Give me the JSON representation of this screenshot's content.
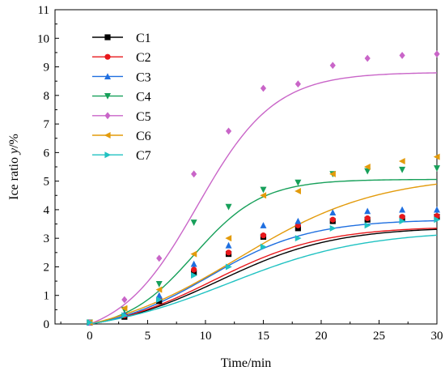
{
  "chart_data": {
    "type": "line",
    "xlabel": "Time/min",
    "ylabel": "Ice ratio y/%",
    "ylabel_parts": {
      "before": "Ice ratio ",
      "italic": "y",
      "after": "/%"
    },
    "xlim": [
      -3,
      30
    ],
    "ylim": [
      0,
      11
    ],
    "xticks": [
      0,
      5,
      10,
      15,
      20,
      25,
      30
    ],
    "yticks": [
      0,
      1,
      2,
      3,
      4,
      5,
      6,
      7,
      8,
      9,
      10,
      11
    ],
    "grid": false,
    "legend_position": "top-left",
    "x": [
      0,
      3,
      6,
      9,
      12,
      15,
      18,
      21,
      24,
      27,
      30
    ],
    "series": [
      {
        "name": "C1",
        "color": "#000000",
        "marker": "square",
        "values": [
          0.05,
          0.25,
          0.8,
          1.8,
          2.45,
          3.05,
          3.35,
          3.6,
          3.65,
          3.7,
          3.75
        ],
        "fit": {
          "A": 3.76,
          "k": 0.2,
          "x0": 11.2
        }
      },
      {
        "name": "C2",
        "color": "#e8181c",
        "marker": "circle",
        "values": [
          0.05,
          0.3,
          0.9,
          1.9,
          2.5,
          3.1,
          3.45,
          3.65,
          3.7,
          3.75,
          3.78
        ],
        "fit": {
          "A": 3.78,
          "k": 0.21,
          "x0": 10.7
        }
      },
      {
        "name": "C3",
        "color": "#1f6fe0",
        "marker": "triangle-up",
        "values": [
          0.05,
          0.35,
          1.0,
          2.1,
          2.75,
          3.45,
          3.6,
          3.9,
          3.95,
          4.0,
          4.0
        ],
        "fit": {
          "A": 4.0,
          "k": 0.23,
          "x0": 10.3
        }
      },
      {
        "name": "C4",
        "color": "#17a05a",
        "marker": "triangle-down",
        "values": [
          0.05,
          0.5,
          1.4,
          3.55,
          4.1,
          4.7,
          4.95,
          5.25,
          5.35,
          5.4,
          5.45
        ],
        "fit": {
          "A": 5.3,
          "k": 0.34,
          "x0": 9.0
        }
      },
      {
        "name": "C5",
        "color": "#c965c8",
        "marker": "diamond",
        "values": [
          0.05,
          0.85,
          2.3,
          5.25,
          6.75,
          8.25,
          8.4,
          9.05,
          9.3,
          9.4,
          9.45
        ],
        "fit": {
          "A": 9.35,
          "k": 0.3,
          "x0": 9.3
        }
      },
      {
        "name": "C6",
        "color": "#e39b0c",
        "marker": "triangle-left",
        "values": [
          0.05,
          0.55,
          1.2,
          2.45,
          3.0,
          4.5,
          4.65,
          5.25,
          5.5,
          5.7,
          5.85
        ],
        "fit": {
          "A": 5.85,
          "k": 0.165,
          "x0": 12.8
        }
      },
      {
        "name": "C7",
        "color": "#20c2c2",
        "marker": "triangle-right",
        "values": [
          0.05,
          0.3,
          0.85,
          1.7,
          2.0,
          2.7,
          3.0,
          3.35,
          3.45,
          3.6,
          3.65
        ],
        "fit": {
          "A": 3.7,
          "k": 0.17,
          "x0": 12.0
        }
      }
    ]
  }
}
